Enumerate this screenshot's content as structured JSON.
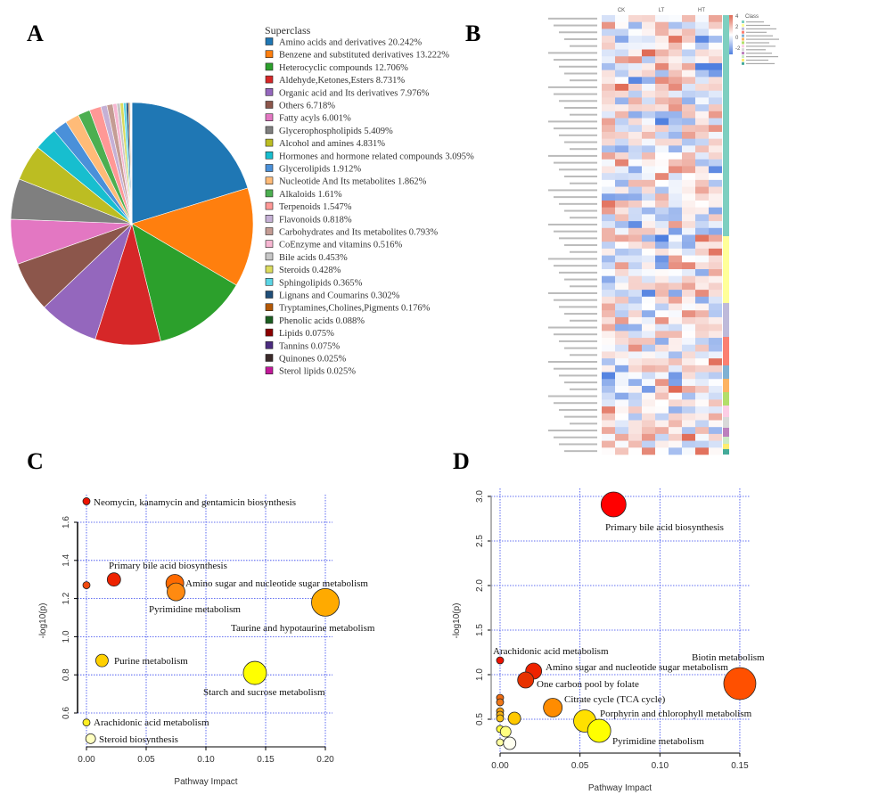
{
  "panels": {
    "a": "A",
    "b": "B",
    "c": "C",
    "d": "D"
  },
  "chart_data": [
    {
      "panel": "A",
      "type": "pie",
      "legend_title": "Superclass",
      "legend_placement": "right",
      "direction": "clockwise from top",
      "slices": [
        {
          "label": "Amino acids and derivatives 20.242%",
          "value": 20.242,
          "color": "#1f77b4"
        },
        {
          "label": "Benzene and substituted derivatives 13.222%",
          "value": 13.222,
          "color": "#ff7f0e"
        },
        {
          "label": "Heterocyclic compounds 12.706%",
          "value": 12.706,
          "color": "#2ca02c"
        },
        {
          "label": "Aldehyde,Ketones,Esters 8.731%",
          "value": 8.731,
          "color": "#d62728"
        },
        {
          "label": "Organic acid and Its derivatives 7.976%",
          "value": 7.976,
          "color": "#9467bd"
        },
        {
          "label": "Others 6.718%",
          "value": 6.718,
          "color": "#8c564b"
        },
        {
          "label": "Fatty acyls 6.001%",
          "value": 6.001,
          "color": "#e377c2"
        },
        {
          "label": "Glycerophospholipids 5.409%",
          "value": 5.409,
          "color": "#7f7f7f"
        },
        {
          "label": "Alcohol and amines 4.831%",
          "value": 4.831,
          "color": "#bcbd22"
        },
        {
          "label": "Hormones and hormone related compounds 3.095%",
          "value": 3.095,
          "color": "#17becf"
        },
        {
          "label": "Glycerolipids 1.912%",
          "value": 1.912,
          "color": "#4a90d9"
        },
        {
          "label": "Nucleotide And Its metabolites 1.862%",
          "value": 1.862,
          "color": "#ffbb78"
        },
        {
          "label": "Alkaloids 1.61%",
          "value": 1.61,
          "color": "#4caf50"
        },
        {
          "label": "Terpenoids 1.547%",
          "value": 1.547,
          "color": "#ff9896"
        },
        {
          "label": "Flavonoids 0.818%",
          "value": 0.818,
          "color": "#c5b0d5"
        },
        {
          "label": "Carbohydrates and Its metabolites 0.793%",
          "value": 0.793,
          "color": "#c49c94"
        },
        {
          "label": "CoEnzyme and vitamins 0.516%",
          "value": 0.516,
          "color": "#f7b6d2"
        },
        {
          "label": "Bile acids 0.453%",
          "value": 0.453,
          "color": "#c7c7c7"
        },
        {
          "label": "Steroids 0.428%",
          "value": 0.428,
          "color": "#dbdb5d"
        },
        {
          "label": "Sphingolipids 0.365%",
          "value": 0.365,
          "color": "#5bd5e5"
        },
        {
          "label": "Lignans and Coumarins 0.302%",
          "value": 0.302,
          "color": "#1f4e79"
        },
        {
          "label": "Tryptamines,Cholines,Pigments 0.176%",
          "value": 0.176,
          "color": "#b35806"
        },
        {
          "label": "Phenolic acids 0.088%",
          "value": 0.088,
          "color": "#1b5e20"
        },
        {
          "label": "Lipids 0.075%",
          "value": 0.075,
          "color": "#8b0000"
        },
        {
          "label": "Tannins 0.075%",
          "value": 0.075,
          "color": "#4b2c80"
        },
        {
          "label": "Quinones 0.025%",
          "value": 0.025,
          "color": "#3b2a2a"
        },
        {
          "label": "Sterol lipids 0.025%",
          "value": 0.025,
          "color": "#c2189a"
        }
      ]
    },
    {
      "panel": "B",
      "type": "heatmap",
      "column_groups": [
        "CK",
        "LT",
        "HT"
      ],
      "replicates_per_group": 3,
      "color_scale": {
        "min": -4,
        "max": 4,
        "low": "#4f7fe0",
        "mid": "#ffffff",
        "high": "#e06a55",
        "tick_labels": [
          "4",
          "2",
          "0",
          "-2"
        ]
      },
      "legend_title": "Class",
      "class_colors": [
        "#7ecfc0",
        "#ffff99",
        "#bebada",
        "#fb8072",
        "#80b1d3",
        "#fdb462",
        "#b3de69",
        "#fccde5",
        "#d9d9d9",
        "#bc80bd",
        "#ccebc5",
        "#ffed6f",
        "#44aa99"
      ]
    },
    {
      "panel": "C",
      "type": "scatter",
      "xlabel": "Pathway Impact",
      "ylabel": "-log10(p)",
      "xlim": [
        0,
        0.2
      ],
      "ylim": [
        0.42,
        1.75
      ],
      "xticks": [
        "0.00",
        "0.05",
        "0.10",
        "0.15",
        "0.20"
      ],
      "yticks": [
        "0.6",
        "0.8",
        "1.0",
        "1.2",
        "1.4",
        "1.6"
      ],
      "grid": true,
      "points": [
        {
          "label": "Neomycin,  kanamycin  and gentamicin  biosynthesis",
          "x": 0.0,
          "y": 1.71,
          "size": 4,
          "color": "#ee1100"
        },
        {
          "label": "",
          "x": 0.0,
          "y": 1.27,
          "size": 4,
          "color": "#f04a10"
        },
        {
          "label": "Primary  bile  acid  biosynthesis",
          "x": 0.023,
          "y": 1.3,
          "size": 7.5,
          "color": "#ee2200"
        },
        {
          "label": "Amino  sugar  and nucleotide  sugar  metabolism",
          "x": 0.074,
          "y": 1.28,
          "size": 10,
          "color": "#ff6a00"
        },
        {
          "label": "Pyrimidine  metabolism",
          "x": 0.075,
          "y": 1.235,
          "size": 10,
          "color": "#ff8a10"
        },
        {
          "label": "Taurine  and hypotaurine  metabolism",
          "x": 0.2,
          "y": 1.18,
          "size": 15.5,
          "color": "#ffaa00"
        },
        {
          "label": "Purine  metabolism",
          "x": 0.013,
          "y": 0.875,
          "size": 7,
          "color": "#ffd000"
        },
        {
          "label": "Starch and sucrose metabolism",
          "x": 0.141,
          "y": 0.81,
          "size": 13,
          "color": "#ffff00"
        },
        {
          "label": "Arachidonic  acid metabolism",
          "x": 0.0,
          "y": 0.55,
          "size": 4,
          "color": "#ffee22"
        },
        {
          "label": "Steroid  biosynthesis",
          "x": 0.0035,
          "y": 0.465,
          "size": 5.5,
          "color": "#ffffc0"
        }
      ]
    },
    {
      "panel": "D",
      "type": "scatter",
      "xlabel": "Pathway Impact",
      "ylabel": "-log10(p)",
      "xlim": [
        0,
        0.15
      ],
      "ylim": [
        0.12,
        3.1
      ],
      "xticks": [
        "0.00",
        "0.05",
        "0.10",
        "0.15"
      ],
      "yticks": [
        "0.5",
        "1.0",
        "1.5",
        "2.0",
        "2.5",
        "3.0"
      ],
      "grid": true,
      "points": [
        {
          "label": "Primary  bile  acid  biosynthesis",
          "x": 0.071,
          "y": 2.91,
          "size": 14,
          "color": "#ff0000"
        },
        {
          "label": "Arachidonic  acid metabolism",
          "x": 0.0,
          "y": 1.16,
          "size": 4,
          "color": "#ee1100"
        },
        {
          "label": "Amino  sugar  and nucleotide  sugar  metabolism",
          "x": 0.021,
          "y": 1.04,
          "size": 9,
          "color": "#ee2200"
        },
        {
          "label": "One carbon pool by folate",
          "x": 0.016,
          "y": 0.94,
          "size": 9,
          "color": "#e83200"
        },
        {
          "label": "Biotin  metabolism",
          "x": 0.15,
          "y": 0.9,
          "size": 18,
          "color": "#ff5000"
        },
        {
          "label": "Citrate  cycle  (TCA cycle)",
          "x": 0.033,
          "y": 0.63,
          "size": 10.5,
          "color": "#ff8c00"
        },
        {
          "label": "Porphyrin  and chlorophyll  metabolism",
          "x": 0.053,
          "y": 0.48,
          "size": 12.5,
          "color": "#ffe000"
        },
        {
          "label": "Pyrimidine  metabolism",
          "x": 0.062,
          "y": 0.37,
          "size": 13,
          "color": "#ffff00"
        },
        {
          "label": "",
          "x": 0.0,
          "y": 0.74,
          "size": 4,
          "color": "#f06a10"
        },
        {
          "label": "",
          "x": 0.0,
          "y": 0.69,
          "size": 4,
          "color": "#f07818"
        },
        {
          "label": "",
          "x": 0.0,
          "y": 0.59,
          "size": 4,
          "color": "#f5a010"
        },
        {
          "label": "",
          "x": 0.0,
          "y": 0.55,
          "size": 4,
          "color": "#f5b010"
        },
        {
          "label": "",
          "x": 0.0,
          "y": 0.51,
          "size": 4,
          "color": "#f8c010"
        },
        {
          "label": "",
          "x": 0.009,
          "y": 0.51,
          "size": 7,
          "color": "#ffc800"
        },
        {
          "label": "",
          "x": 0.0,
          "y": 0.39,
          "size": 4,
          "color": "#ffff40"
        },
        {
          "label": "",
          "x": 0.0035,
          "y": 0.36,
          "size": 6,
          "color": "#ffff80"
        },
        {
          "label": "",
          "x": 0.0,
          "y": 0.24,
          "size": 4,
          "color": "#ffffa0"
        },
        {
          "label": "",
          "x": 0.006,
          "y": 0.23,
          "size": 7,
          "color": "#fffff0"
        }
      ]
    }
  ]
}
